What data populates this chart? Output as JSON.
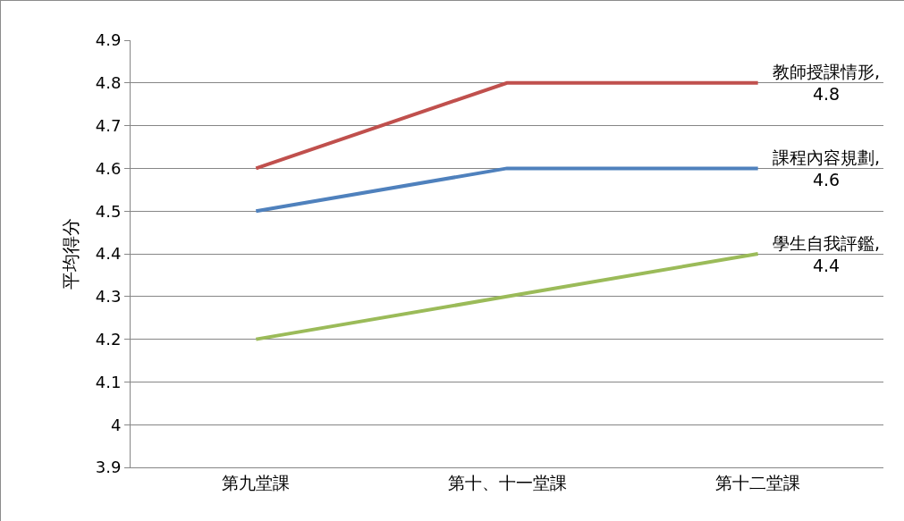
{
  "chart_data": {
    "type": "line",
    "ylabel": "平均得分",
    "categories": [
      "第九堂課",
      "第十、十一堂課",
      "第十二堂課"
    ],
    "series": [
      {
        "color": "#c0504d",
        "values": [
          4.6,
          4.8,
          4.8
        ],
        "value_labels": [
          null,
          null,
          "教師授課情形,\n4.8"
        ]
      },
      {
        "color": "#4f81bd",
        "values": [
          4.5,
          4.6,
          4.6
        ],
        "value_labels": [
          null,
          null,
          "課程內容規劃,\n4.6"
        ]
      },
      {
        "color": "#9bbb59",
        "values": [
          4.2,
          4.3,
          4.4
        ],
        "value_labels": [
          null,
          null,
          "學生自我評鑑,\n4.4"
        ]
      }
    ],
    "ylim": [
      3.9,
      4.9
    ],
    "yticks": [
      3.9,
      {
        "value": 4,
        "label": "4"
      },
      4.1,
      4.2,
      4.3,
      4.4,
      4.5,
      4.6,
      4.7,
      4.8,
      4.9
    ],
    "grid": "y",
    "legend": false,
    "marker": "none",
    "line_style": "solid"
  }
}
